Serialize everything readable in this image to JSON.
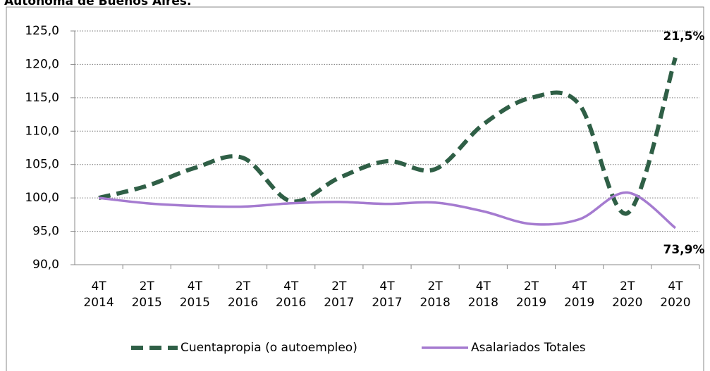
{
  "chart_data": {
    "type": "line",
    "title": "Autónoma de Buenos Aires.",
    "categories": [
      "4T 2014",
      "2T 2015",
      "4T 2015",
      "2T 2016",
      "4T 2016",
      "2T 2017",
      "4T 2017",
      "2T 2018",
      "4T 2018",
      "2T 2019",
      "4T 2019",
      "2T 2020",
      "4T 2020"
    ],
    "series": [
      {
        "name": "Cuentapropia (o autoempleo)",
        "color": "#2f5f46",
        "dashed": true,
        "values": [
          100.0,
          101.8,
          104.5,
          106.0,
          99.5,
          103.0,
          105.5,
          104.3,
          111.0,
          115.0,
          114.0,
          97.7,
          121.0
        ]
      },
      {
        "name": "Asalariados Totales",
        "color": "#a57bd0",
        "dashed": false,
        "values": [
          100.0,
          99.2,
          98.8,
          98.7,
          99.2,
          99.4,
          99.1,
          99.3,
          98.0,
          96.1,
          96.8,
          100.8,
          95.5
        ]
      }
    ],
    "annotations": [
      {
        "text": "21,5%",
        "color": "#2f5f46"
      },
      {
        "text": "73,9%",
        "color": "#a57bd0"
      }
    ],
    "ylim": [
      90,
      125
    ],
    "yticks": [
      {
        "value": 90,
        "label": "90,0"
      },
      {
        "value": 95,
        "label": "95,0"
      },
      {
        "value": 100,
        "label": "100,0"
      },
      {
        "value": 105,
        "label": "105,0"
      },
      {
        "value": 110,
        "label": "110,0"
      },
      {
        "value": 115,
        "label": "115,0"
      },
      {
        "value": 120,
        "label": "120,0"
      },
      {
        "value": 125,
        "label": "125,0"
      }
    ],
    "grid": true
  }
}
